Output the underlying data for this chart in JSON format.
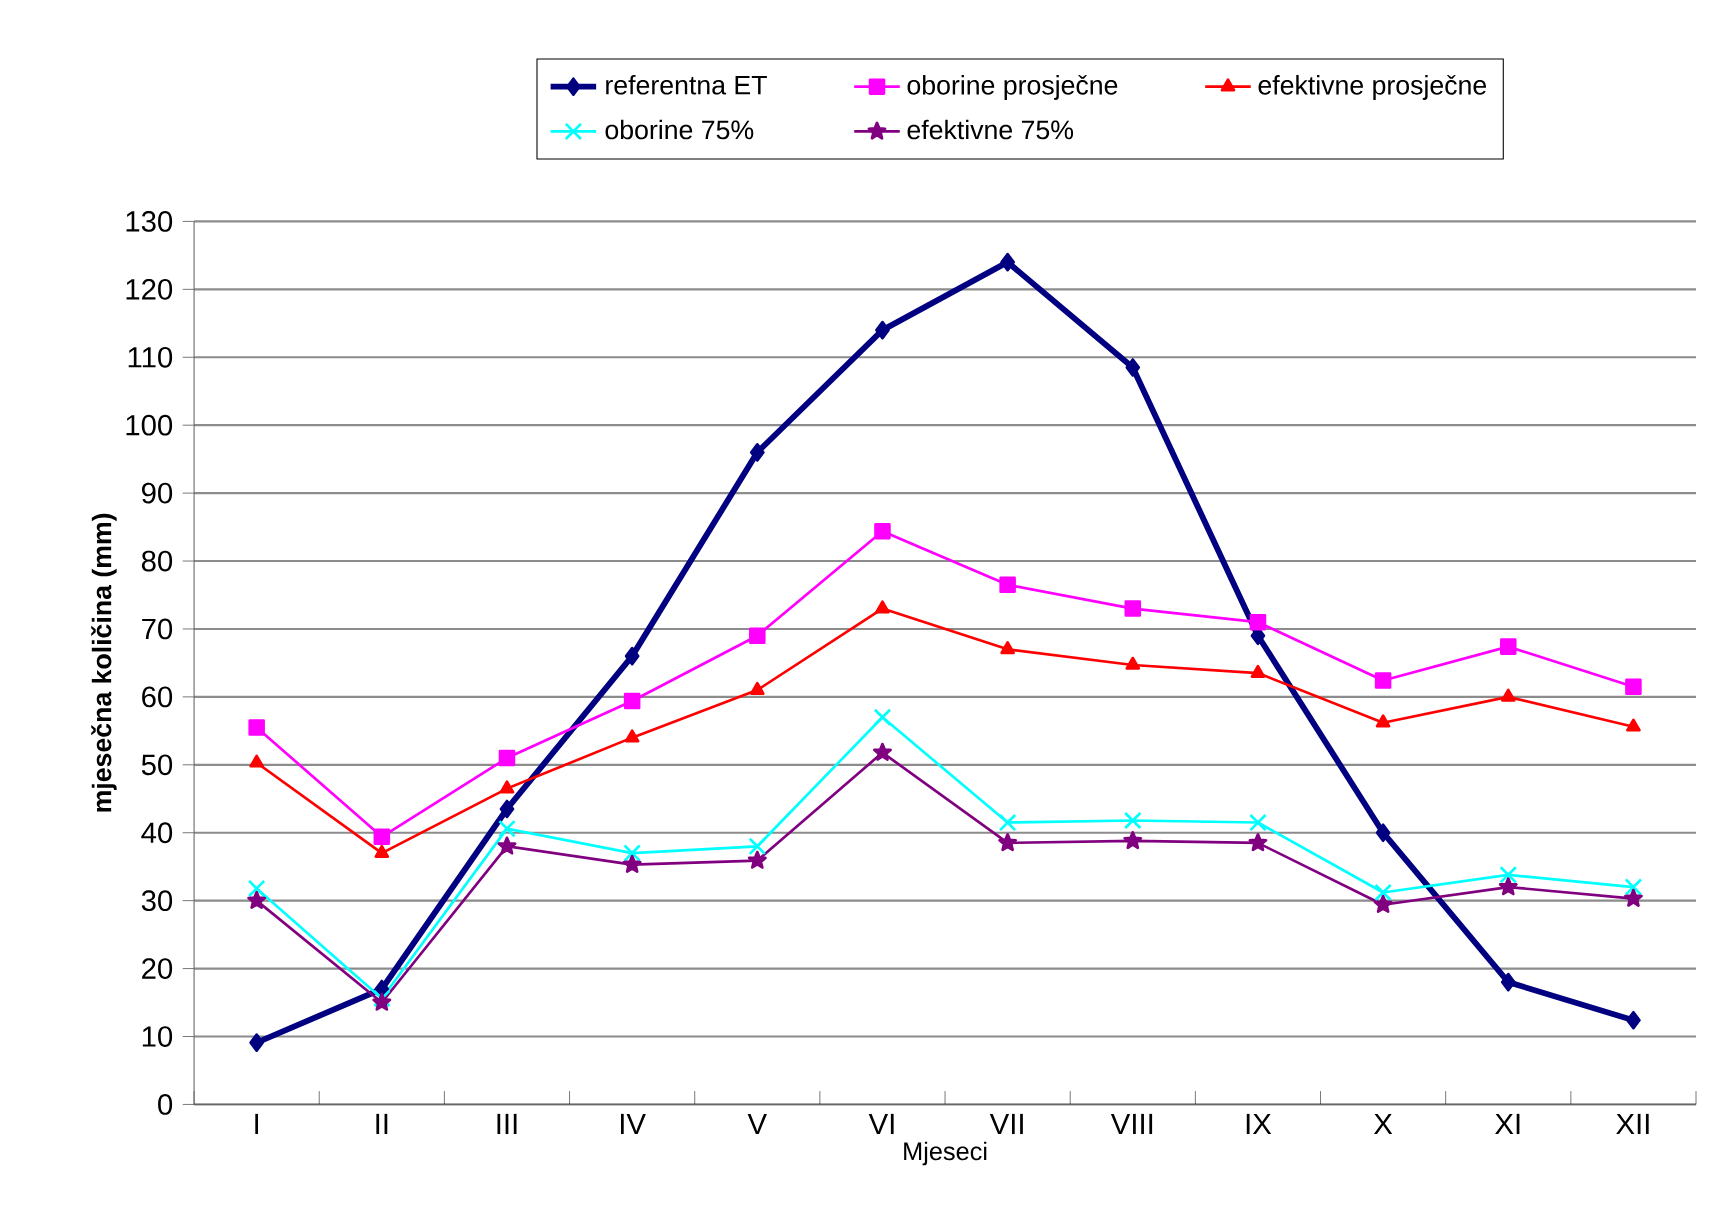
{
  "chart_data": {
    "type": "line",
    "xlabel": "Mjeseci",
    "ylabel": "mjesečna količina (mm)",
    "categories": [
      "I",
      "II",
      "III",
      "IV",
      "V",
      "VI",
      "VII",
      "VIII",
      "IX",
      "X",
      "XI",
      "XII"
    ],
    "ylim": [
      0,
      130
    ],
    "yticks": [
      0,
      10,
      20,
      30,
      40,
      50,
      60,
      70,
      80,
      90,
      100,
      110,
      120,
      130
    ],
    "grid": "y",
    "legend": "top",
    "series": [
      {
        "name": "referentna ET",
        "color": "#000080",
        "marker": "diamond",
        "values": [
          9.1,
          17,
          43.5,
          66,
          96,
          114,
          124,
          108.5,
          69,
          40,
          18,
          12.4
        ]
      },
      {
        "name": "oborine prosječne",
        "color": "#ff00ff",
        "marker": "square",
        "values": [
          55.5,
          39.4,
          51,
          59.4,
          69,
          84.4,
          76.5,
          73,
          71,
          62.4,
          67.4,
          61.5
        ]
      },
      {
        "name": "efektivne prosječne",
        "color": "#ff0000",
        "marker": "triangle",
        "values": [
          50.3,
          37,
          46.5,
          54,
          61,
          73,
          67,
          64.7,
          63.5,
          56.2,
          60,
          55.6
        ]
      },
      {
        "name": "oborine 75%",
        "color": "#00ffff",
        "marker": "cross",
        "values": [
          31.8,
          15.6,
          40.6,
          37,
          38,
          57,
          41.5,
          41.8,
          41.5,
          31.2,
          33.8,
          32
        ]
      },
      {
        "name": "efektivne 75%",
        "color": "#800080",
        "marker": "star",
        "values": [
          30,
          15,
          38,
          35.3,
          35.9,
          51.8,
          38.5,
          38.8,
          38.5,
          29.4,
          32,
          30.3
        ]
      }
    ]
  }
}
